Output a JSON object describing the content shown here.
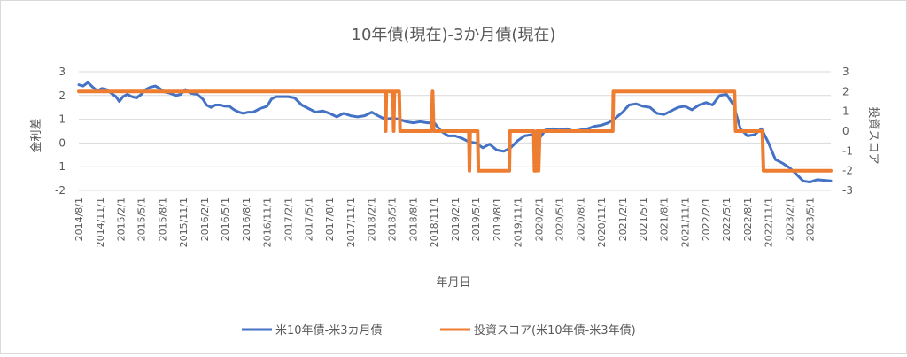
{
  "chart_data": {
    "type": "line",
    "title": "10年債(現在)-3か月債(現在)",
    "xlabel": "年月日",
    "ylabel_left": "金利差",
    "ylabel_right": "投資スコア",
    "ylim_left": [
      -2,
      3
    ],
    "ylim_right": [
      -3,
      3
    ],
    "yticks_left": [
      "3",
      "2",
      "1",
      "0",
      "-1",
      "-2"
    ],
    "yticks_right": [
      "3",
      "2",
      "1",
      "0",
      "-1",
      "-2",
      "-3"
    ],
    "x_range": [
      "2014-08-01",
      "2023-07-31"
    ],
    "categories": [
      "2014/8/1",
      "2014/11/1",
      "2015/2/1",
      "2015/5/1",
      "2015/8/1",
      "2015/11/1",
      "2016/2/1",
      "2016/5/1",
      "2016/8/1",
      "2016/11/1",
      "2017/2/1",
      "2017/5/1",
      "2017/8/1",
      "2017/11/1",
      "2018/2/1",
      "2018/5/1",
      "2018/8/1",
      "2018/11/1",
      "2019/2/1",
      "2019/5/1",
      "2019/8/1",
      "2019/11/1",
      "2020/2/1",
      "2020/5/1",
      "2020/8/1",
      "2020/11/1",
      "2021/2/1",
      "2021/5/1",
      "2021/8/1",
      "2021/11/1",
      "2022/2/1",
      "2022/5/1",
      "2022/8/1",
      "2022/11/1",
      "2023/2/1",
      "2023/5/1"
    ],
    "grid": "horizontal",
    "legend_position": "bottom",
    "series": [
      {
        "name": "米10年債-米3カ月債",
        "axis": "left",
        "color": "#4472C4",
        "points": [
          [
            "2014-08-01",
            2.45
          ],
          [
            "2014-08-20",
            2.4
          ],
          [
            "2014-09-10",
            2.55
          ],
          [
            "2014-10-01",
            2.35
          ],
          [
            "2014-10-20",
            2.2
          ],
          [
            "2014-11-10",
            2.3
          ],
          [
            "2014-12-01",
            2.25
          ],
          [
            "2014-12-20",
            2.1
          ],
          [
            "2015-01-10",
            1.95
          ],
          [
            "2015-01-25",
            1.75
          ],
          [
            "2015-02-10",
            1.95
          ],
          [
            "2015-03-01",
            2.05
          ],
          [
            "2015-03-20",
            1.95
          ],
          [
            "2015-04-10",
            1.9
          ],
          [
            "2015-05-01",
            2.05
          ],
          [
            "2015-05-20",
            2.25
          ],
          [
            "2015-06-10",
            2.35
          ],
          [
            "2015-07-01",
            2.4
          ],
          [
            "2015-07-20",
            2.3
          ],
          [
            "2015-08-10",
            2.15
          ],
          [
            "2015-09-01",
            2.1
          ],
          [
            "2015-10-01",
            2.0
          ],
          [
            "2015-10-20",
            2.05
          ],
          [
            "2015-11-10",
            2.25
          ],
          [
            "2015-12-01",
            2.1
          ],
          [
            "2016-01-01",
            2.05
          ],
          [
            "2016-01-25",
            1.85
          ],
          [
            "2016-02-10",
            1.6
          ],
          [
            "2016-03-01",
            1.5
          ],
          [
            "2016-03-20",
            1.6
          ],
          [
            "2016-04-10",
            1.6
          ],
          [
            "2016-05-01",
            1.55
          ],
          [
            "2016-05-20",
            1.55
          ],
          [
            "2016-06-10",
            1.4
          ],
          [
            "2016-07-01",
            1.3
          ],
          [
            "2016-07-20",
            1.25
          ],
          [
            "2016-08-10",
            1.3
          ],
          [
            "2016-09-01",
            1.3
          ],
          [
            "2016-10-01",
            1.45
          ],
          [
            "2016-11-01",
            1.55
          ],
          [
            "2016-11-20",
            1.85
          ],
          [
            "2016-12-10",
            1.95
          ],
          [
            "2017-01-01",
            1.95
          ],
          [
            "2017-02-01",
            1.95
          ],
          [
            "2017-03-01",
            1.9
          ],
          [
            "2017-04-01",
            1.6
          ],
          [
            "2017-05-01",
            1.45
          ],
          [
            "2017-06-01",
            1.3
          ],
          [
            "2017-07-01",
            1.35
          ],
          [
            "2017-08-01",
            1.25
          ],
          [
            "2017-09-01",
            1.1
          ],
          [
            "2017-10-01",
            1.25
          ],
          [
            "2017-11-01",
            1.15
          ],
          [
            "2017-12-01",
            1.1
          ],
          [
            "2018-01-01",
            1.15
          ],
          [
            "2018-02-01",
            1.3
          ],
          [
            "2018-03-01",
            1.15
          ],
          [
            "2018-04-01",
            1.0
          ],
          [
            "2018-05-01",
            1.05
          ],
          [
            "2018-06-01",
            1.0
          ],
          [
            "2018-07-01",
            0.9
          ],
          [
            "2018-08-01",
            0.85
          ],
          [
            "2018-09-01",
            0.9
          ],
          [
            "2018-10-01",
            0.85
          ],
          [
            "2018-11-01",
            0.85
          ],
          [
            "2018-12-01",
            0.5
          ],
          [
            "2019-01-01",
            0.3
          ],
          [
            "2019-02-01",
            0.3
          ],
          [
            "2019-03-01",
            0.2
          ],
          [
            "2019-04-01",
            0.05
          ],
          [
            "2019-05-01",
            0.0
          ],
          [
            "2019-06-01",
            -0.2
          ],
          [
            "2019-07-01",
            -0.05
          ],
          [
            "2019-08-01",
            -0.3
          ],
          [
            "2019-09-01",
            -0.35
          ],
          [
            "2019-10-01",
            -0.2
          ],
          [
            "2019-11-01",
            0.1
          ],
          [
            "2019-12-01",
            0.3
          ],
          [
            "2020-01-01",
            0.35
          ],
          [
            "2020-02-01",
            0.15
          ],
          [
            "2020-03-01",
            0.55
          ],
          [
            "2020-04-01",
            0.6
          ],
          [
            "2020-05-01",
            0.55
          ],
          [
            "2020-06-01",
            0.6
          ],
          [
            "2020-07-01",
            0.5
          ],
          [
            "2020-08-01",
            0.55
          ],
          [
            "2020-09-01",
            0.6
          ],
          [
            "2020-10-01",
            0.7
          ],
          [
            "2020-11-01",
            0.75
          ],
          [
            "2020-12-01",
            0.85
          ],
          [
            "2021-01-01",
            1.05
          ],
          [
            "2021-02-01",
            1.3
          ],
          [
            "2021-03-01",
            1.6
          ],
          [
            "2021-04-01",
            1.65
          ],
          [
            "2021-05-01",
            1.55
          ],
          [
            "2021-06-01",
            1.5
          ],
          [
            "2021-07-01",
            1.25
          ],
          [
            "2021-08-01",
            1.2
          ],
          [
            "2021-09-01",
            1.35
          ],
          [
            "2021-10-01",
            1.5
          ],
          [
            "2021-11-01",
            1.55
          ],
          [
            "2021-12-01",
            1.4
          ],
          [
            "2022-01-01",
            1.6
          ],
          [
            "2022-02-01",
            1.7
          ],
          [
            "2022-03-01",
            1.6
          ],
          [
            "2022-04-01",
            2.0
          ],
          [
            "2022-05-01",
            2.05
          ],
          [
            "2022-06-01",
            1.6
          ],
          [
            "2022-07-01",
            0.6
          ],
          [
            "2022-08-01",
            0.3
          ],
          [
            "2022-09-01",
            0.35
          ],
          [
            "2022-10-01",
            0.6
          ],
          [
            "2022-11-01",
            0.0
          ],
          [
            "2022-12-01",
            -0.7
          ],
          [
            "2023-01-01",
            -0.85
          ],
          [
            "2023-02-01",
            -1.05
          ],
          [
            "2023-03-01",
            -1.3
          ],
          [
            "2023-04-01",
            -1.6
          ],
          [
            "2023-05-01",
            -1.65
          ],
          [
            "2023-06-01",
            -1.55
          ],
          [
            "2023-07-31",
            -1.6
          ]
        ]
      },
      {
        "name": "投資スコア(米10年債-米3年債)",
        "axis": "right",
        "color": "#ED7D31",
        "points": [
          [
            "2014-08-01",
            2
          ],
          [
            "2018-04-01",
            2
          ],
          [
            "2018-04-03",
            0
          ],
          [
            "2018-04-06",
            2
          ],
          [
            "2018-05-05",
            2
          ],
          [
            "2018-05-08",
            0
          ],
          [
            "2018-05-11",
            2
          ],
          [
            "2018-06-01",
            2
          ],
          [
            "2018-06-05",
            0
          ],
          [
            "2018-10-20",
            0
          ],
          [
            "2018-10-25",
            2
          ],
          [
            "2018-10-30",
            0
          ],
          [
            "2019-04-01",
            0
          ],
          [
            "2019-04-04",
            -2
          ],
          [
            "2019-04-07",
            0
          ],
          [
            "2019-05-10",
            0
          ],
          [
            "2019-05-13",
            -2
          ],
          [
            "2019-09-25",
            -2
          ],
          [
            "2019-09-28",
            0
          ],
          [
            "2020-01-10",
            0
          ],
          [
            "2020-01-13",
            -2
          ],
          [
            "2020-01-20",
            -2
          ],
          [
            "2020-01-23",
            0
          ],
          [
            "2020-01-28",
            0
          ],
          [
            "2020-01-31",
            -2
          ],
          [
            "2020-02-05",
            0
          ],
          [
            "2020-12-20",
            0
          ],
          [
            "2020-12-23",
            2
          ],
          [
            "2022-06-05",
            2
          ],
          [
            "2022-06-10",
            0
          ],
          [
            "2022-10-05",
            0
          ],
          [
            "2022-10-10",
            -2
          ],
          [
            "2023-07-31",
            -2
          ]
        ]
      }
    ]
  }
}
